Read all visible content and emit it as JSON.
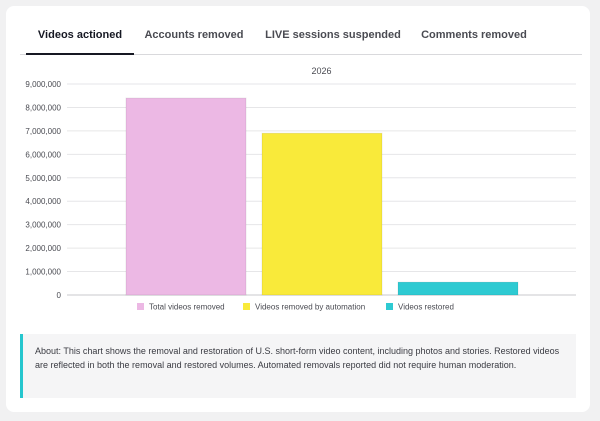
{
  "tabs": [
    {
      "label": "Videos actioned",
      "active": true
    },
    {
      "label": "Accounts removed",
      "active": false
    },
    {
      "label": "LIVE sessions suspended",
      "active": false
    },
    {
      "label": "Comments removed",
      "active": false
    }
  ],
  "colors": {
    "accent": "#25c6ce",
    "total": "#ecb8e4",
    "automation": "#f9ea3a",
    "restored": "#2ecad2"
  },
  "chart_data": {
    "type": "bar",
    "title": "2026",
    "categories": [
      "2026"
    ],
    "series": [
      {
        "name": "Total videos removed",
        "values": [
          8400000
        ],
        "color": "#ecb8e4"
      },
      {
        "name": "Videos removed by automation",
        "values": [
          6900000
        ],
        "color": "#f9ea3a"
      },
      {
        "name": "Videos restored",
        "values": [
          550000
        ],
        "color": "#2ecad2"
      }
    ],
    "ylim": [
      0,
      9000000
    ],
    "yticks": [
      0,
      1000000,
      2000000,
      3000000,
      4000000,
      5000000,
      6000000,
      7000000,
      8000000,
      9000000
    ],
    "ytick_labels": [
      "0",
      "1,000,000",
      "2,000,000",
      "3,000,000",
      "4,000,000",
      "5,000,000",
      "6,000,000",
      "7,000,000",
      "8,000,000",
      "9,000,000"
    ],
    "grid": true,
    "legend": "bottom"
  },
  "about": "About: This chart shows the removal and restoration of U.S. short-form video content, including photos and stories. Restored videos are reflected in both the removal and restored volumes. Automated removals reported did not require human moderation."
}
